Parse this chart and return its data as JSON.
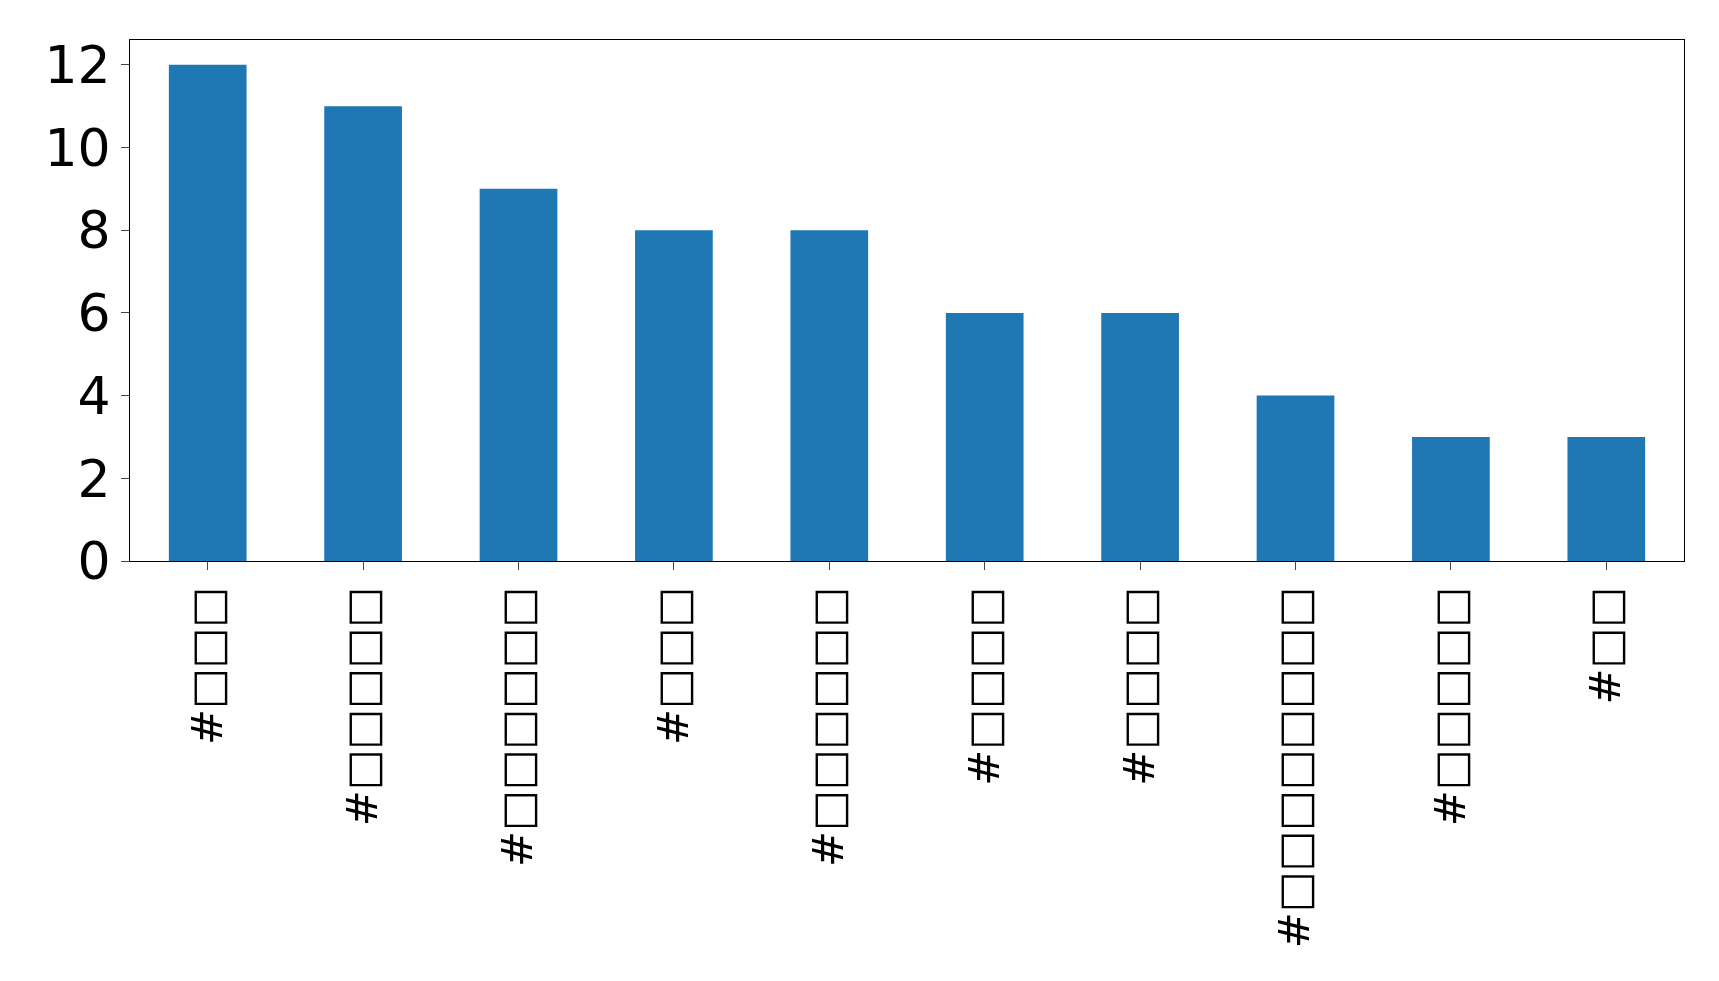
{
  "chart_data": {
    "type": "bar",
    "categories": [
      "#□□□",
      "#□□□□□",
      "#□□□□□□",
      "#□□□",
      "#□□□□□□",
      "#□□□□",
      "#□□□□",
      "#□□□□□□□□",
      "#□□□□□",
      "#□□"
    ],
    "values": [
      12,
      11,
      9,
      8,
      8,
      6,
      6,
      4,
      3,
      3
    ],
    "color": "#1f77b4",
    "ylim": [
      0,
      12.6
    ],
    "yticks": [
      0,
      2,
      4,
      6,
      8,
      10,
      12
    ],
    "grid": false
  }
}
